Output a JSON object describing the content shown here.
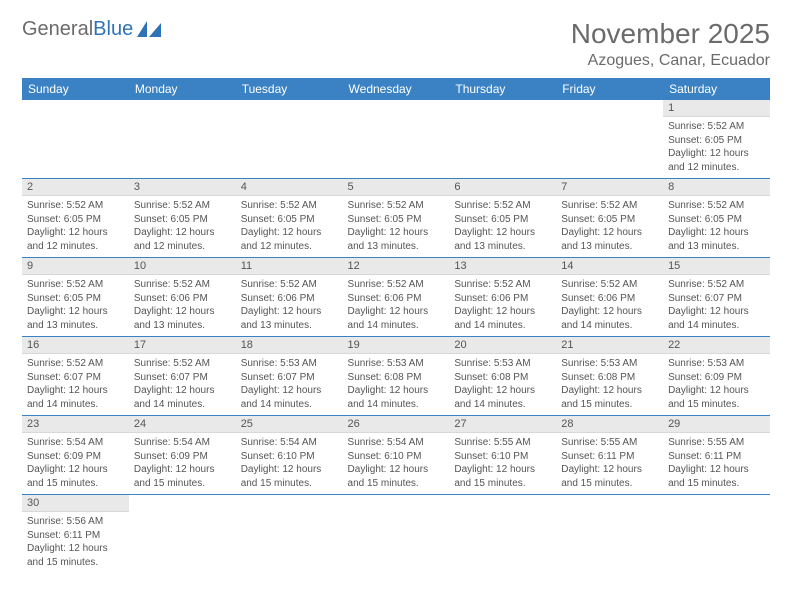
{
  "logo": {
    "text1": "General",
    "text2": "Blue",
    "triangle_color": "#2f73b6"
  },
  "header": {
    "month_title": "November 2025",
    "location": "Azogues, Canar, Ecuador"
  },
  "colors": {
    "header_bg": "#3b82c4",
    "header_fg": "#ffffff",
    "daynum_bg": "#e9e9e9",
    "text": "#555555",
    "row_border": "#3b82c4",
    "page_bg": "#ffffff"
  },
  "typography": {
    "title_fontsize": 28,
    "location_fontsize": 16,
    "dayheader_fontsize": 12,
    "cell_fontsize": 10
  },
  "layout": {
    "columns": 7,
    "rows": 6
  },
  "day_headers": [
    "Sunday",
    "Monday",
    "Tuesday",
    "Wednesday",
    "Thursday",
    "Friday",
    "Saturday"
  ],
  "cells": [
    [
      {
        "num": "",
        "lines": []
      },
      {
        "num": "",
        "lines": []
      },
      {
        "num": "",
        "lines": []
      },
      {
        "num": "",
        "lines": []
      },
      {
        "num": "",
        "lines": []
      },
      {
        "num": "",
        "lines": []
      },
      {
        "num": "1",
        "lines": [
          "Sunrise: 5:52 AM",
          "Sunset: 6:05 PM",
          "Daylight: 12 hours",
          "and 12 minutes."
        ]
      }
    ],
    [
      {
        "num": "2",
        "lines": [
          "Sunrise: 5:52 AM",
          "Sunset: 6:05 PM",
          "Daylight: 12 hours",
          "and 12 minutes."
        ]
      },
      {
        "num": "3",
        "lines": [
          "Sunrise: 5:52 AM",
          "Sunset: 6:05 PM",
          "Daylight: 12 hours",
          "and 12 minutes."
        ]
      },
      {
        "num": "4",
        "lines": [
          "Sunrise: 5:52 AM",
          "Sunset: 6:05 PM",
          "Daylight: 12 hours",
          "and 12 minutes."
        ]
      },
      {
        "num": "5",
        "lines": [
          "Sunrise: 5:52 AM",
          "Sunset: 6:05 PM",
          "Daylight: 12 hours",
          "and 13 minutes."
        ]
      },
      {
        "num": "6",
        "lines": [
          "Sunrise: 5:52 AM",
          "Sunset: 6:05 PM",
          "Daylight: 12 hours",
          "and 13 minutes."
        ]
      },
      {
        "num": "7",
        "lines": [
          "Sunrise: 5:52 AM",
          "Sunset: 6:05 PM",
          "Daylight: 12 hours",
          "and 13 minutes."
        ]
      },
      {
        "num": "8",
        "lines": [
          "Sunrise: 5:52 AM",
          "Sunset: 6:05 PM",
          "Daylight: 12 hours",
          "and 13 minutes."
        ]
      }
    ],
    [
      {
        "num": "9",
        "lines": [
          "Sunrise: 5:52 AM",
          "Sunset: 6:05 PM",
          "Daylight: 12 hours",
          "and 13 minutes."
        ]
      },
      {
        "num": "10",
        "lines": [
          "Sunrise: 5:52 AM",
          "Sunset: 6:06 PM",
          "Daylight: 12 hours",
          "and 13 minutes."
        ]
      },
      {
        "num": "11",
        "lines": [
          "Sunrise: 5:52 AM",
          "Sunset: 6:06 PM",
          "Daylight: 12 hours",
          "and 13 minutes."
        ]
      },
      {
        "num": "12",
        "lines": [
          "Sunrise: 5:52 AM",
          "Sunset: 6:06 PM",
          "Daylight: 12 hours",
          "and 14 minutes."
        ]
      },
      {
        "num": "13",
        "lines": [
          "Sunrise: 5:52 AM",
          "Sunset: 6:06 PM",
          "Daylight: 12 hours",
          "and 14 minutes."
        ]
      },
      {
        "num": "14",
        "lines": [
          "Sunrise: 5:52 AM",
          "Sunset: 6:06 PM",
          "Daylight: 12 hours",
          "and 14 minutes."
        ]
      },
      {
        "num": "15",
        "lines": [
          "Sunrise: 5:52 AM",
          "Sunset: 6:07 PM",
          "Daylight: 12 hours",
          "and 14 minutes."
        ]
      }
    ],
    [
      {
        "num": "16",
        "lines": [
          "Sunrise: 5:52 AM",
          "Sunset: 6:07 PM",
          "Daylight: 12 hours",
          "and 14 minutes."
        ]
      },
      {
        "num": "17",
        "lines": [
          "Sunrise: 5:52 AM",
          "Sunset: 6:07 PM",
          "Daylight: 12 hours",
          "and 14 minutes."
        ]
      },
      {
        "num": "18",
        "lines": [
          "Sunrise: 5:53 AM",
          "Sunset: 6:07 PM",
          "Daylight: 12 hours",
          "and 14 minutes."
        ]
      },
      {
        "num": "19",
        "lines": [
          "Sunrise: 5:53 AM",
          "Sunset: 6:08 PM",
          "Daylight: 12 hours",
          "and 14 minutes."
        ]
      },
      {
        "num": "20",
        "lines": [
          "Sunrise: 5:53 AM",
          "Sunset: 6:08 PM",
          "Daylight: 12 hours",
          "and 14 minutes."
        ]
      },
      {
        "num": "21",
        "lines": [
          "Sunrise: 5:53 AM",
          "Sunset: 6:08 PM",
          "Daylight: 12 hours",
          "and 15 minutes."
        ]
      },
      {
        "num": "22",
        "lines": [
          "Sunrise: 5:53 AM",
          "Sunset: 6:09 PM",
          "Daylight: 12 hours",
          "and 15 minutes."
        ]
      }
    ],
    [
      {
        "num": "23",
        "lines": [
          "Sunrise: 5:54 AM",
          "Sunset: 6:09 PM",
          "Daylight: 12 hours",
          "and 15 minutes."
        ]
      },
      {
        "num": "24",
        "lines": [
          "Sunrise: 5:54 AM",
          "Sunset: 6:09 PM",
          "Daylight: 12 hours",
          "and 15 minutes."
        ]
      },
      {
        "num": "25",
        "lines": [
          "Sunrise: 5:54 AM",
          "Sunset: 6:10 PM",
          "Daylight: 12 hours",
          "and 15 minutes."
        ]
      },
      {
        "num": "26",
        "lines": [
          "Sunrise: 5:54 AM",
          "Sunset: 6:10 PM",
          "Daylight: 12 hours",
          "and 15 minutes."
        ]
      },
      {
        "num": "27",
        "lines": [
          "Sunrise: 5:55 AM",
          "Sunset: 6:10 PM",
          "Daylight: 12 hours",
          "and 15 minutes."
        ]
      },
      {
        "num": "28",
        "lines": [
          "Sunrise: 5:55 AM",
          "Sunset: 6:11 PM",
          "Daylight: 12 hours",
          "and 15 minutes."
        ]
      },
      {
        "num": "29",
        "lines": [
          "Sunrise: 5:55 AM",
          "Sunset: 6:11 PM",
          "Daylight: 12 hours",
          "and 15 minutes."
        ]
      }
    ],
    [
      {
        "num": "30",
        "lines": [
          "Sunrise: 5:56 AM",
          "Sunset: 6:11 PM",
          "Daylight: 12 hours",
          "and 15 minutes."
        ]
      },
      {
        "num": "",
        "lines": []
      },
      {
        "num": "",
        "lines": []
      },
      {
        "num": "",
        "lines": []
      },
      {
        "num": "",
        "lines": []
      },
      {
        "num": "",
        "lines": []
      },
      {
        "num": "",
        "lines": []
      }
    ]
  ]
}
